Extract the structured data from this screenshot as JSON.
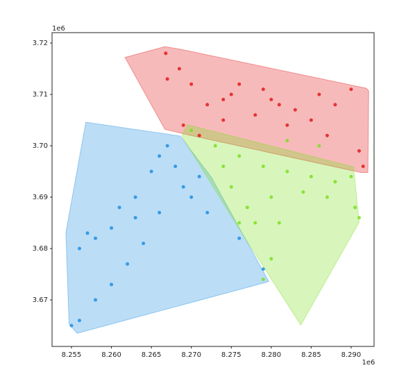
{
  "chart_data": {
    "type": "scatter",
    "x_offset_label": "1e6",
    "y_offset_label": "1e6",
    "xlim": [
      8252570,
      8292870
    ],
    "ylim": [
      3660946,
      3722027
    ],
    "xticks": [
      {
        "value": 8255000,
        "label": "8.255"
      },
      {
        "value": 8260000,
        "label": "8.260"
      },
      {
        "value": 8265000,
        "label": "8.265"
      },
      {
        "value": 8270000,
        "label": "8.270"
      },
      {
        "value": 8275000,
        "label": "8.275"
      },
      {
        "value": 8280000,
        "label": "8.280"
      },
      {
        "value": 8285000,
        "label": "8.285"
      },
      {
        "value": 8290000,
        "label": "8.290"
      }
    ],
    "yticks": [
      {
        "value": 3670000,
        "label": "3.67"
      },
      {
        "value": 3680000,
        "label": "3.68"
      },
      {
        "value": 3690000,
        "label": "3.69"
      },
      {
        "value": 3700000,
        "label": "3.70"
      },
      {
        "value": 3710000,
        "label": "3.71"
      },
      {
        "value": 3720000,
        "label": "3.72"
      }
    ],
    "series": [
      {
        "color": "#e31a1c",
        "hull_x": [
          8261700,
          8266700,
          8268600,
          8291900,
          8292200,
          8292100,
          8291200,
          8269700,
          8266700
        ],
        "hull_y": [
          3717200,
          3719300,
          3718800,
          3711200,
          3710700,
          3694800,
          3694800,
          3702100,
          3703200
        ],
        "x": [
          8268500,
          8270000,
          8272000,
          8275000,
          8278000,
          8280000,
          8283000,
          8286000,
          8288000,
          8290000,
          8269000,
          8271000,
          8274000,
          8276000,
          8282000,
          8285000,
          8287000,
          8291000,
          8291500,
          8266800,
          8267000,
          8279000,
          8281000,
          8274000
        ],
        "y": [
          3715000,
          3712000,
          3708000,
          3710000,
          3706000,
          3709000,
          3707000,
          3710000,
          3708000,
          3711000,
          3704000,
          3702000,
          3705000,
          3712000,
          3704000,
          3705000,
          3702000,
          3699000,
          3696000,
          3718000,
          3713000,
          3711000,
          3708000,
          3709000
        ]
      },
      {
        "color": "#1f8fe0",
        "hull_x": [
          8256800,
          8268600,
          8272500,
          8279700,
          8279300,
          8255700,
          8254700,
          8254300
        ],
        "hull_y": [
          3704600,
          3701900,
          3693900,
          3673600,
          3673400,
          3663500,
          3665300,
          3683100
        ],
        "x": [
          8257000,
          8258000,
          8260000,
          8261000,
          8263000,
          8265000,
          8266000,
          8267000,
          8268000,
          8269000,
          8270000,
          8266000,
          8264000,
          8262000,
          8260000,
          8258000,
          8256000,
          8255000,
          8272000,
          8276000,
          8279000,
          8271000,
          8263000,
          8256000
        ],
        "y": [
          3683000,
          3682000,
          3684000,
          3688000,
          3690000,
          3695000,
          3698000,
          3700000,
          3696000,
          3692000,
          3690000,
          3687000,
          3681000,
          3677000,
          3673000,
          3670000,
          3666000,
          3665000,
          3687000,
          3682000,
          3676000,
          3694000,
          3686000,
          3680000
        ]
      },
      {
        "color": "#7ddf20",
        "hull_x": [
          8269500,
          8290300,
          8291000,
          8283700,
          8276000,
          8268800
        ],
        "hull_y": [
          3704100,
          3695900,
          3685100,
          3665100,
          3683800,
          3701900
        ],
        "x": [
          8270000,
          8273000,
          8276000,
          8279000,
          8282000,
          8285000,
          8288000,
          8290000,
          8290500,
          8291000,
          8287000,
          8284000,
          8280000,
          8277000,
          8278000,
          8275000,
          8274000,
          8281000,
          8280000,
          8279000,
          8276000,
          8282000,
          8286000
        ],
        "y": [
          3703000,
          3700000,
          3698000,
          3696000,
          3695000,
          3694000,
          3693000,
          3694000,
          3688000,
          3686000,
          3690000,
          3691000,
          3690000,
          3688000,
          3685000,
          3692000,
          3696000,
          3685000,
          3678000,
          3674000,
          3685000,
          3701000,
          3700000
        ]
      }
    ]
  }
}
